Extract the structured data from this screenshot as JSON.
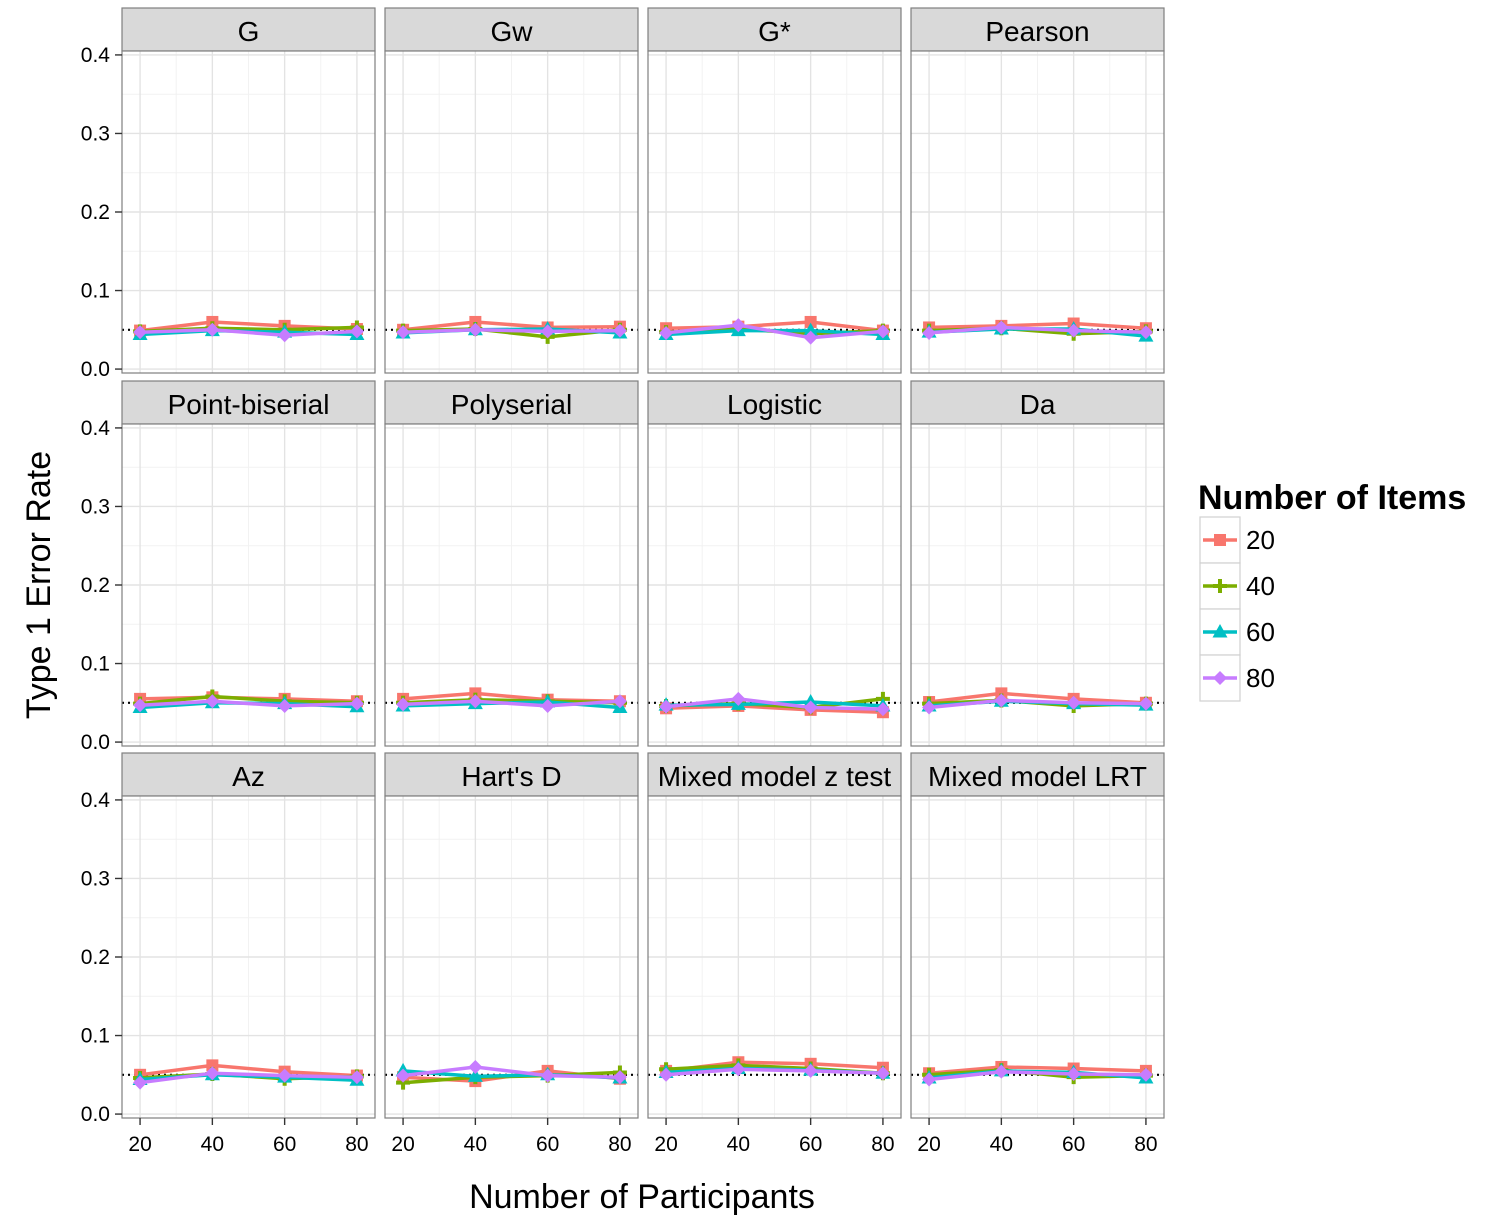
{
  "chart_data": {
    "type": "line",
    "facet_layout": "3x4 grid",
    "xlabel": "Number of Participants",
    "ylabel": "Type 1 Error Rate",
    "x": [
      20,
      40,
      60,
      80
    ],
    "x_ticks": [
      20,
      40,
      60,
      80
    ],
    "y_ticks": [
      0.0,
      0.1,
      0.2,
      0.3,
      0.4
    ],
    "y_tick_labels": [
      "0.0",
      "0.1",
      "0.2",
      "0.3",
      "0.4"
    ],
    "xlim": [
      15,
      85
    ],
    "ylim": [
      -0.005,
      0.405
    ],
    "reference_line": 0.05,
    "grid": true,
    "legend": {
      "title": "Number of Items",
      "position": "right",
      "entries": [
        {
          "label": "20",
          "color": "#F8766D",
          "marker": "square"
        },
        {
          "label": "40",
          "color": "#7CAE00",
          "marker": "plus"
        },
        {
          "label": "60",
          "color": "#00BFC4",
          "marker": "triangle"
        },
        {
          "label": "80",
          "color": "#C77CFF",
          "marker": "diamond"
        }
      ]
    },
    "panels": [
      {
        "title": "G",
        "series": [
          {
            "name": "20",
            "values": [
              0.049,
              0.06,
              0.055,
              0.051
            ]
          },
          {
            "name": "40",
            "values": [
              0.048,
              0.052,
              0.05,
              0.053
            ]
          },
          {
            "name": "60",
            "values": [
              0.044,
              0.049,
              0.047,
              0.044
            ]
          },
          {
            "name": "80",
            "values": [
              0.047,
              0.05,
              0.043,
              0.048
            ]
          }
        ]
      },
      {
        "title": "Gw",
        "series": [
          {
            "name": "20",
            "values": [
              0.05,
              0.06,
              0.053,
              0.054
            ]
          },
          {
            "name": "40",
            "values": [
              0.049,
              0.051,
              0.041,
              0.05
            ]
          },
          {
            "name": "60",
            "values": [
              0.046,
              0.05,
              0.051,
              0.046
            ]
          },
          {
            "name": "80",
            "values": [
              0.047,
              0.05,
              0.048,
              0.049
            ]
          }
        ]
      },
      {
        "title": "G*",
        "series": [
          {
            "name": "20",
            "values": [
              0.052,
              0.054,
              0.06,
              0.049
            ]
          },
          {
            "name": "40",
            "values": [
              0.047,
              0.051,
              0.045,
              0.049
            ]
          },
          {
            "name": "60",
            "values": [
              0.044,
              0.049,
              0.049,
              0.044
            ]
          },
          {
            "name": "80",
            "values": [
              0.046,
              0.056,
              0.04,
              0.048
            ]
          }
        ]
      },
      {
        "title": "Pearson",
        "series": [
          {
            "name": "20",
            "values": [
              0.053,
              0.055,
              0.058,
              0.052
            ]
          },
          {
            "name": "40",
            "values": [
              0.049,
              0.052,
              0.045,
              0.048
            ]
          },
          {
            "name": "60",
            "values": [
              0.047,
              0.051,
              0.051,
              0.042
            ]
          },
          {
            "name": "80",
            "values": [
              0.046,
              0.053,
              0.049,
              0.047
            ]
          }
        ]
      },
      {
        "title": "Point-biserial",
        "series": [
          {
            "name": "20",
            "values": [
              0.055,
              0.057,
              0.055,
              0.052
            ]
          },
          {
            "name": "40",
            "values": [
              0.049,
              0.058,
              0.052,
              0.05
            ]
          },
          {
            "name": "60",
            "values": [
              0.044,
              0.05,
              0.049,
              0.045
            ]
          },
          {
            "name": "80",
            "values": [
              0.047,
              0.052,
              0.046,
              0.049
            ]
          }
        ]
      },
      {
        "title": "Polyserial",
        "series": [
          {
            "name": "20",
            "values": [
              0.055,
              0.062,
              0.054,
              0.052
            ]
          },
          {
            "name": "40",
            "values": [
              0.05,
              0.054,
              0.052,
              0.05
            ]
          },
          {
            "name": "60",
            "values": [
              0.046,
              0.049,
              0.051,
              0.044
            ]
          },
          {
            "name": "80",
            "values": [
              0.048,
              0.052,
              0.046,
              0.052
            ]
          }
        ]
      },
      {
        "title": "Logistic",
        "series": [
          {
            "name": "20",
            "values": [
              0.043,
              0.046,
              0.041,
              0.038
            ]
          },
          {
            "name": "40",
            "values": [
              0.046,
              0.049,
              0.044,
              0.055
            ]
          },
          {
            "name": "60",
            "values": [
              0.047,
              0.048,
              0.051,
              0.046
            ]
          },
          {
            "name": "80",
            "values": [
              0.045,
              0.055,
              0.044,
              0.042
            ]
          }
        ]
      },
      {
        "title": "Da",
        "series": [
          {
            "name": "20",
            "values": [
              0.051,
              0.062,
              0.055,
              0.05
            ]
          },
          {
            "name": "40",
            "values": [
              0.049,
              0.053,
              0.046,
              0.049
            ]
          },
          {
            "name": "60",
            "values": [
              0.046,
              0.052,
              0.049,
              0.047
            ]
          },
          {
            "name": "80",
            "values": [
              0.044,
              0.053,
              0.05,
              0.049
            ]
          }
        ]
      },
      {
        "title": "Az",
        "series": [
          {
            "name": "20",
            "values": [
              0.05,
              0.062,
              0.054,
              0.049
            ]
          },
          {
            "name": "40",
            "values": [
              0.046,
              0.051,
              0.045,
              0.048
            ]
          },
          {
            "name": "60",
            "values": [
              0.044,
              0.05,
              0.047,
              0.043
            ]
          },
          {
            "name": "80",
            "values": [
              0.04,
              0.052,
              0.049,
              0.047
            ]
          }
        ]
      },
      {
        "title": "Hart's D",
        "series": [
          {
            "name": "20",
            "values": [
              0.047,
              0.042,
              0.055,
              0.045
            ]
          },
          {
            "name": "40",
            "values": [
              0.04,
              0.047,
              0.049,
              0.053
            ]
          },
          {
            "name": "60",
            "values": [
              0.055,
              0.048,
              0.05,
              0.046
            ]
          },
          {
            "name": "80",
            "values": [
              0.049,
              0.06,
              0.049,
              0.047
            ]
          }
        ]
      },
      {
        "title": "Mixed model z test",
        "series": [
          {
            "name": "20",
            "values": [
              0.055,
              0.066,
              0.064,
              0.059
            ]
          },
          {
            "name": "40",
            "values": [
              0.057,
              0.062,
              0.058,
              0.052
            ]
          },
          {
            "name": "60",
            "values": [
              0.053,
              0.058,
              0.056,
              0.052
            ]
          },
          {
            "name": "80",
            "values": [
              0.05,
              0.057,
              0.055,
              0.052
            ]
          }
        ]
      },
      {
        "title": "Mixed model LRT",
        "series": [
          {
            "name": "20",
            "values": [
              0.052,
              0.06,
              0.058,
              0.055
            ]
          },
          {
            "name": "40",
            "values": [
              0.05,
              0.056,
              0.047,
              0.049
            ]
          },
          {
            "name": "60",
            "values": [
              0.046,
              0.055,
              0.053,
              0.046
            ]
          },
          {
            "name": "80",
            "values": [
              0.044,
              0.054,
              0.051,
              0.05
            ]
          }
        ]
      }
    ]
  }
}
